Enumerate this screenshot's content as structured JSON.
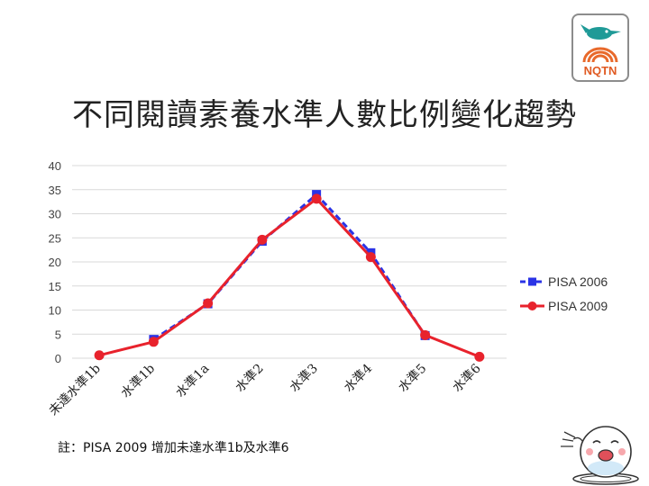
{
  "slide": {
    "title": "不同閱讀素養水準人數比例變化趨勢",
    "note": "註：PISA 2009 增加未達水準1b及水準6",
    "logo_text": "NQTN"
  },
  "colors": {
    "pisa_2006": "#2a33e6",
    "pisa_2009": "#e8222c",
    "grid": "#d9d9d9",
    "axis_text": "#444444"
  },
  "chart_data": {
    "type": "line",
    "categories": [
      "未達水準1b",
      "水準1b",
      "水準1a",
      "水準2",
      "水準3",
      "水準4",
      "水準5",
      "水準6"
    ],
    "series": [
      {
        "name": "PISA 2006",
        "values": [
          null,
          3.9,
          11.3,
          24.3,
          34.0,
          21.9,
          4.7,
          null
        ],
        "color": "#2a33e6",
        "style": "dashed",
        "marker": "square"
      },
      {
        "name": "PISA 2009",
        "values": [
          0.6,
          3.4,
          11.4,
          24.6,
          33.1,
          21.0,
          4.8,
          0.3
        ],
        "color": "#e8222c",
        "style": "solid",
        "marker": "circle"
      }
    ],
    "ylim": [
      0,
      40
    ],
    "yticks": [
      "0",
      "5",
      "10",
      "15",
      "20",
      "25",
      "30",
      "35",
      "40"
    ],
    "grid": true,
    "legend_position": "right",
    "xlabel": "",
    "ylabel": ""
  }
}
